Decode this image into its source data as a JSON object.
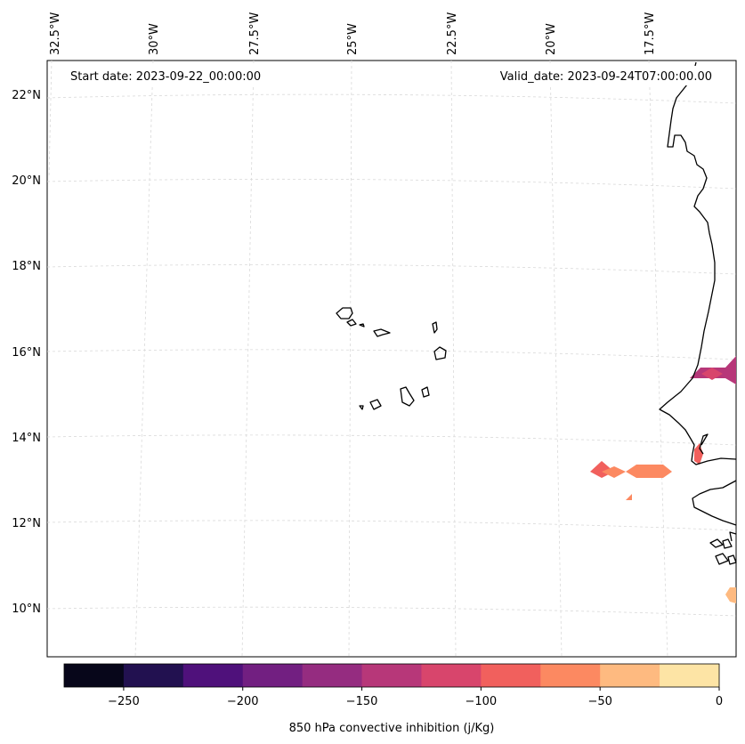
{
  "map": {
    "start_date_text": "Start date: 2023-09-22_00:00:00",
    "valid_date_text": "Valid_date: 2023-09-24T07:00:00.00",
    "lon_labels": [
      "32.5°W",
      "30°W",
      "27.5°W",
      "25°W",
      "22.5°W",
      "20°W",
      "17.5°W"
    ],
    "lat_labels": [
      "22°N",
      "20°N",
      "18°N",
      "16°N",
      "14°N",
      "12°N",
      "10°N"
    ],
    "coast_color": "#000000",
    "grid_color": "#cccccc"
  },
  "colorbar": {
    "title": "850 hPa convective inhibition (j/Kg)",
    "tick_labels": [
      "−250",
      "−200",
      "−150",
      "−100",
      "−50",
      "0"
    ],
    "bins": [
      -275,
      -250,
      -225,
      -200,
      -175,
      -150,
      -125,
      -100,
      -75,
      -50,
      -25,
      0
    ],
    "colors": [
      "#07061a",
      "#221150",
      "#4f117b",
      "#721f81",
      "#952c80",
      "#b73779",
      "#d8456c",
      "#f1605d",
      "#fc8961",
      "#feba80",
      "#fde4a5"
    ]
  }
}
